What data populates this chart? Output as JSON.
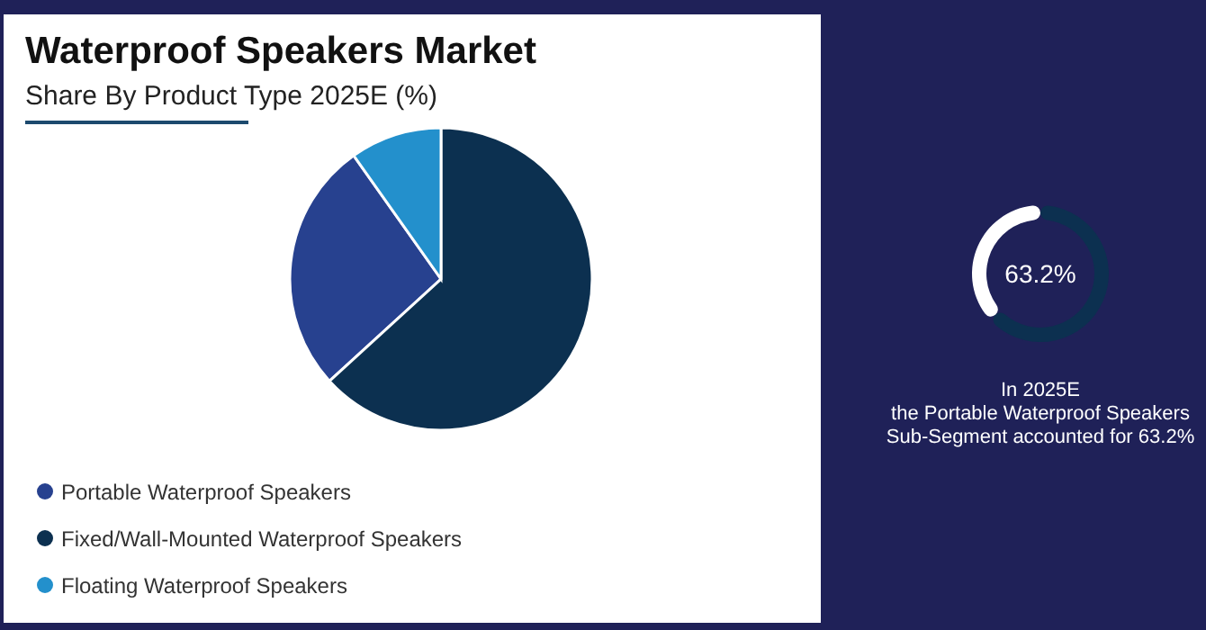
{
  "chart_data": [
    {
      "type": "pie",
      "title": "Waterproof Speakers Market",
      "subtitle": "Share By Product Type 2025E (%)",
      "categories": [
        "Portable Waterproof Speakers",
        "Fixed/Wall-Mounted Waterproof Speakers",
        "Floating Waterproof Speakers"
      ],
      "values": [
        27,
        63.2,
        9.8
      ],
      "colors": [
        "#27418f",
        "#0c3050",
        "#2390cc"
      ],
      "legend": "bottom"
    },
    {
      "type": "donut",
      "categories": [
        null,
        null
      ],
      "values": [
        63.2,
        36.8
      ],
      "colors": [
        "#0c3050",
        "#ffffff"
      ],
      "value_labels": [
        "63.2%",
        null
      ],
      "annotations": [
        "In 2025E",
        "the Portable Waterproof Speakers",
        "Sub-Segment accounted for 63.2%"
      ]
    }
  ]
}
